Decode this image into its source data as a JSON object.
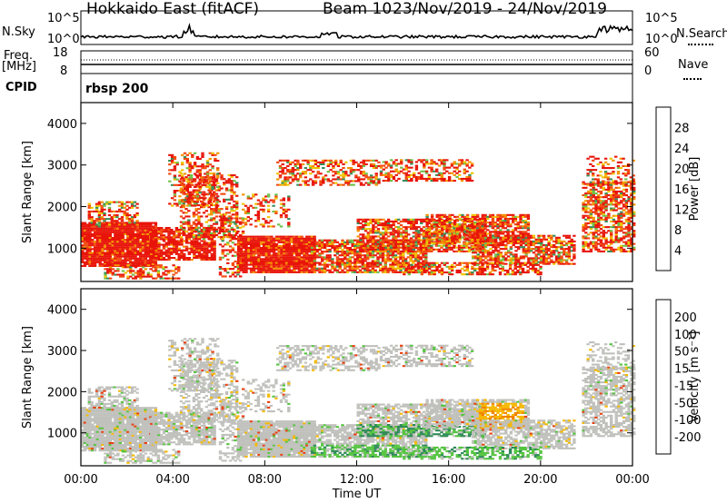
{
  "header": {
    "station": "Hokkaido East (fitACF)",
    "beam": "Beam 10",
    "dates": "23/Nov/2019 - 24/Nov/2019"
  },
  "aux_panels": {
    "nsky_label": "N.Sky",
    "nsky_ticks": [
      "10^5",
      "10^0"
    ],
    "nsearch_label": "N.Search",
    "freq_label_1": "Freq.",
    "freq_label_2": "[MHz]",
    "freq_ticks": [
      "18",
      "8"
    ],
    "nave_label": "Nave",
    "nave_ticks": [
      "60",
      "0"
    ],
    "cpid_label": "CPID",
    "cpid_value": "rbsp 200"
  },
  "chart_data": [
    {
      "type": "heatmap",
      "name": "power",
      "ylabel": "Slant Range [km]",
      "yticks": [
        "1000",
        "2000",
        "3000",
        "4000"
      ],
      "ylim": [
        200,
        4500
      ],
      "xlabel": "",
      "colorbar": {
        "label": "Power [dB]",
        "ticks": [
          "4",
          "8",
          "12",
          "16",
          "20",
          "24",
          "28"
        ],
        "colors": [
          "#0a1ee8",
          "#2454b8",
          "#3a8e5a",
          "#6fc04a",
          "#f0c400",
          "#f39200",
          "#f24a10",
          "#e8140a"
        ]
      }
    },
    {
      "type": "heatmap",
      "name": "velocity",
      "ylabel": "Slant Range [km]",
      "yticks": [
        "1000",
        "2000",
        "3000",
        "4000"
      ],
      "ylim": [
        200,
        4500
      ],
      "xlabel": "Time UT",
      "xticks": [
        "00:00",
        "04:00",
        "08:00",
        "12:00",
        "16:00",
        "20:00",
        "00:00"
      ],
      "colorbar": {
        "label": "Velocity [m s⁻¹]",
        "ticks": [
          "200",
          "100",
          "50",
          "15",
          "-15",
          "-50",
          "-100",
          "-200"
        ],
        "colors": [
          "#1428a8",
          "#2f6fae",
          "#2e8b57",
          "#55c440",
          "#c0c0bc",
          "#f5b800",
          "#f08200",
          "#e84010",
          "#e8140a"
        ]
      }
    }
  ]
}
